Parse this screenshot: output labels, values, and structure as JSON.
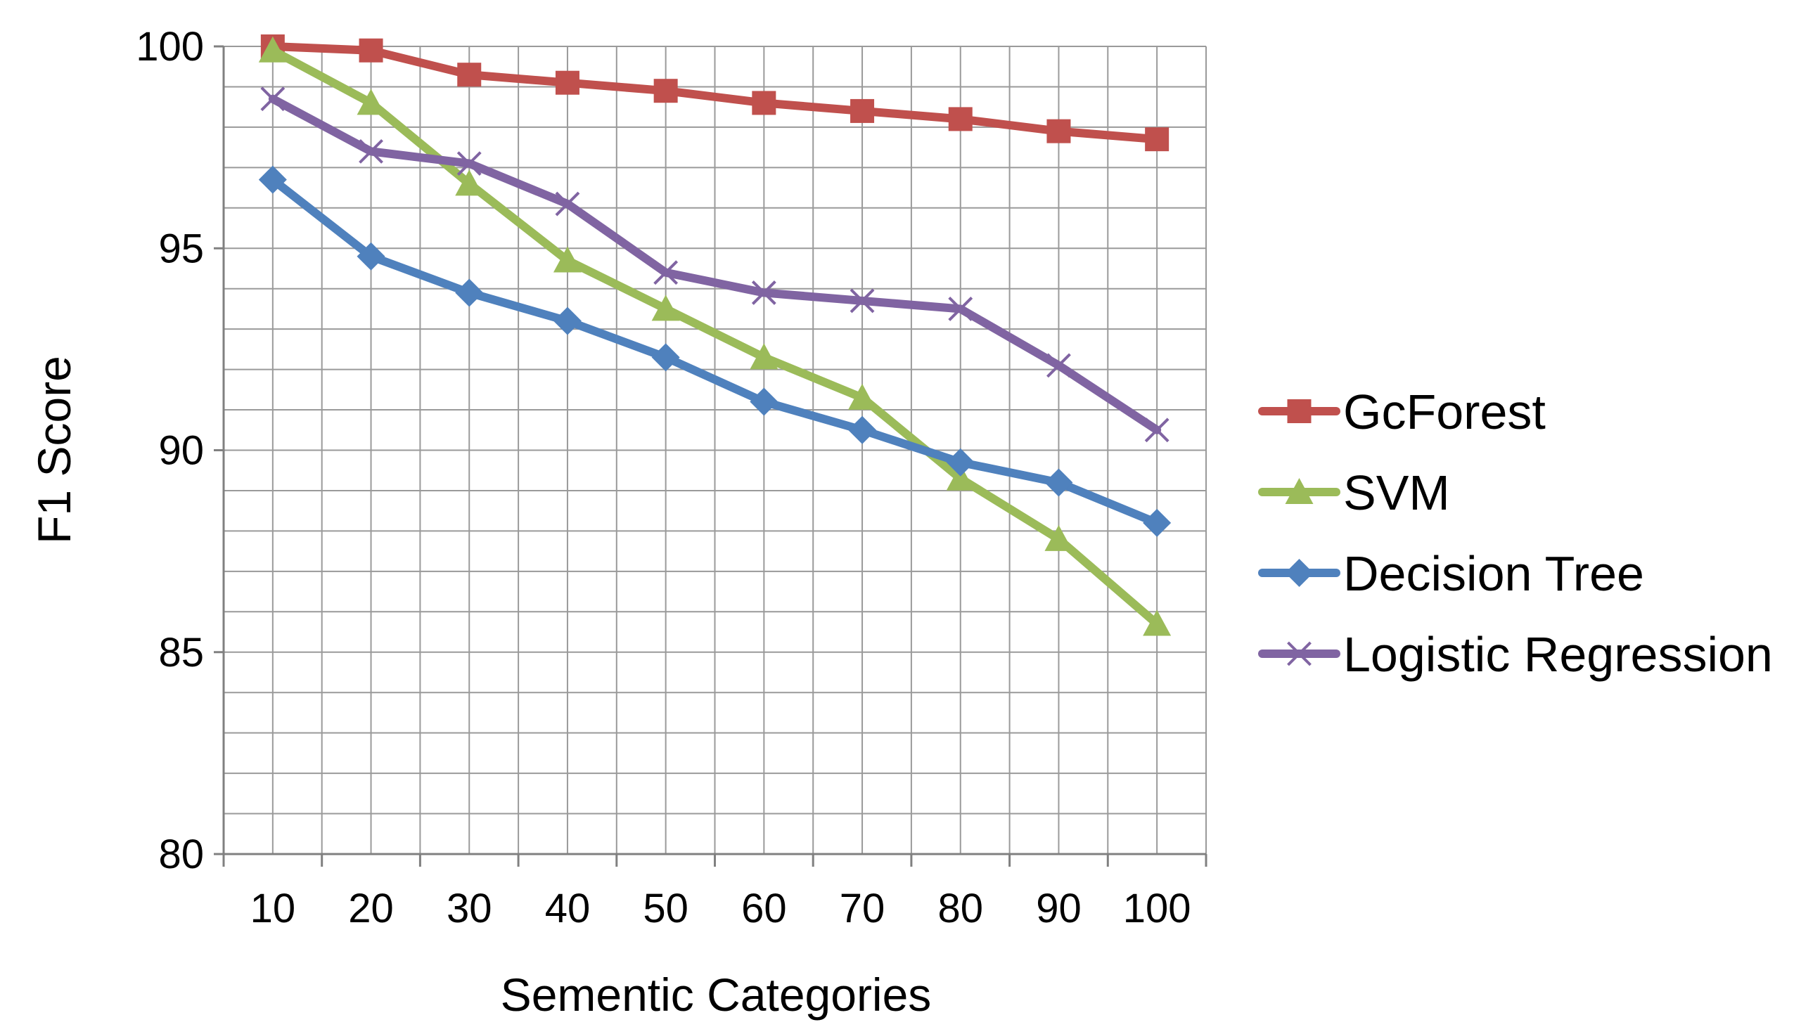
{
  "chart_data": {
    "type": "line",
    "title": "",
    "xlabel": "Sementic Categories",
    "ylabel": "F1 Score",
    "categories": [
      "10",
      "20",
      "30",
      "40",
      "50",
      "60",
      "70",
      "80",
      "90",
      "100"
    ],
    "ylim": [
      80,
      100
    ],
    "yticks": [
      "80",
      "85",
      "90",
      "95",
      "100"
    ],
    "grid": true,
    "legend_position": "right",
    "series": [
      {
        "name": "GcForest",
        "marker": "square",
        "color": "#C0504D",
        "values": [
          100,
          99.9,
          99.3,
          99.1,
          98.9,
          98.6,
          98.4,
          98.2,
          97.9,
          97.7
        ]
      },
      {
        "name": "SVM",
        "marker": "triangle",
        "color": "#9BBB59",
        "values": [
          99.9,
          98.6,
          96.6,
          94.7,
          93.5,
          92.3,
          91.3,
          89.3,
          87.8,
          85.7
        ]
      },
      {
        "name": "Decision Tree",
        "marker": "diamond",
        "color": "#4F81BD",
        "values": [
          96.7,
          94.8,
          93.9,
          93.2,
          92.3,
          91.2,
          90.5,
          89.7,
          89.2,
          88.2
        ]
      },
      {
        "name": "Logistic Regression",
        "marker": "x",
        "color": "#8064A2",
        "values": [
          98.7,
          97.4,
          97.1,
          96.1,
          94.4,
          93.9,
          93.7,
          93.5,
          92.1,
          90.5
        ]
      }
    ]
  }
}
